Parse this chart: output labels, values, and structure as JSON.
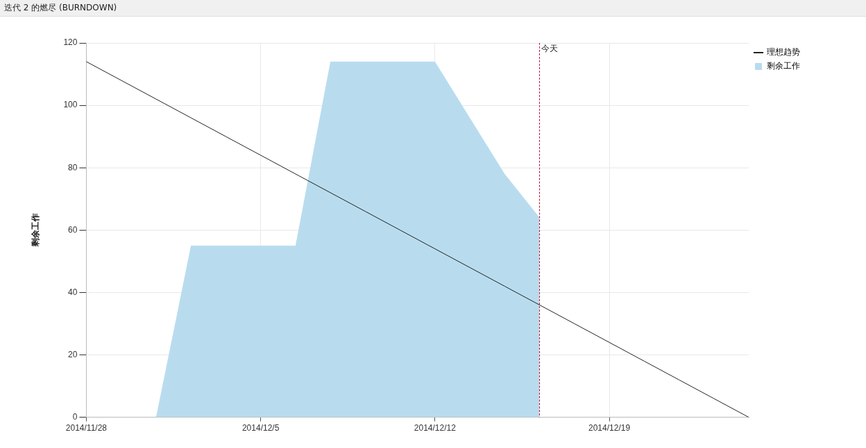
{
  "chart_data": {
    "type": "area",
    "title": "迭代 2 的燃尽 (BURNDOWN)",
    "ylabel": "剩余工作",
    "categories": [
      "2014/11/28",
      null,
      null,
      null,
      null,
      "2014/12/5",
      null,
      null,
      null,
      null,
      "2014/12/12",
      null,
      null,
      null,
      null,
      "2014/12/19",
      null,
      null,
      null,
      null
    ],
    "ylim": [
      0,
      120
    ],
    "yticks": [
      0,
      20,
      40,
      60,
      80,
      100,
      120
    ],
    "series": [
      {
        "name": "理想趋势",
        "type": "line",
        "color": "#222222",
        "values": [
          114,
          108,
          102,
          96,
          90,
          84,
          78,
          72,
          66,
          60,
          54,
          48,
          42,
          36,
          30,
          24,
          18,
          12,
          6,
          0
        ]
      },
      {
        "name": "剩余工作",
        "color": "#b8dcee",
        "values": [
          null,
          null,
          0,
          55,
          null,
          null,
          55,
          114,
          null,
          null,
          114,
          null,
          78,
          64,
          null,
          null,
          null,
          null,
          null,
          null
        ]
      }
    ],
    "annotations": [
      "今天"
    ],
    "grid": true,
    "legend": "top right",
    "marker": "none"
  }
}
